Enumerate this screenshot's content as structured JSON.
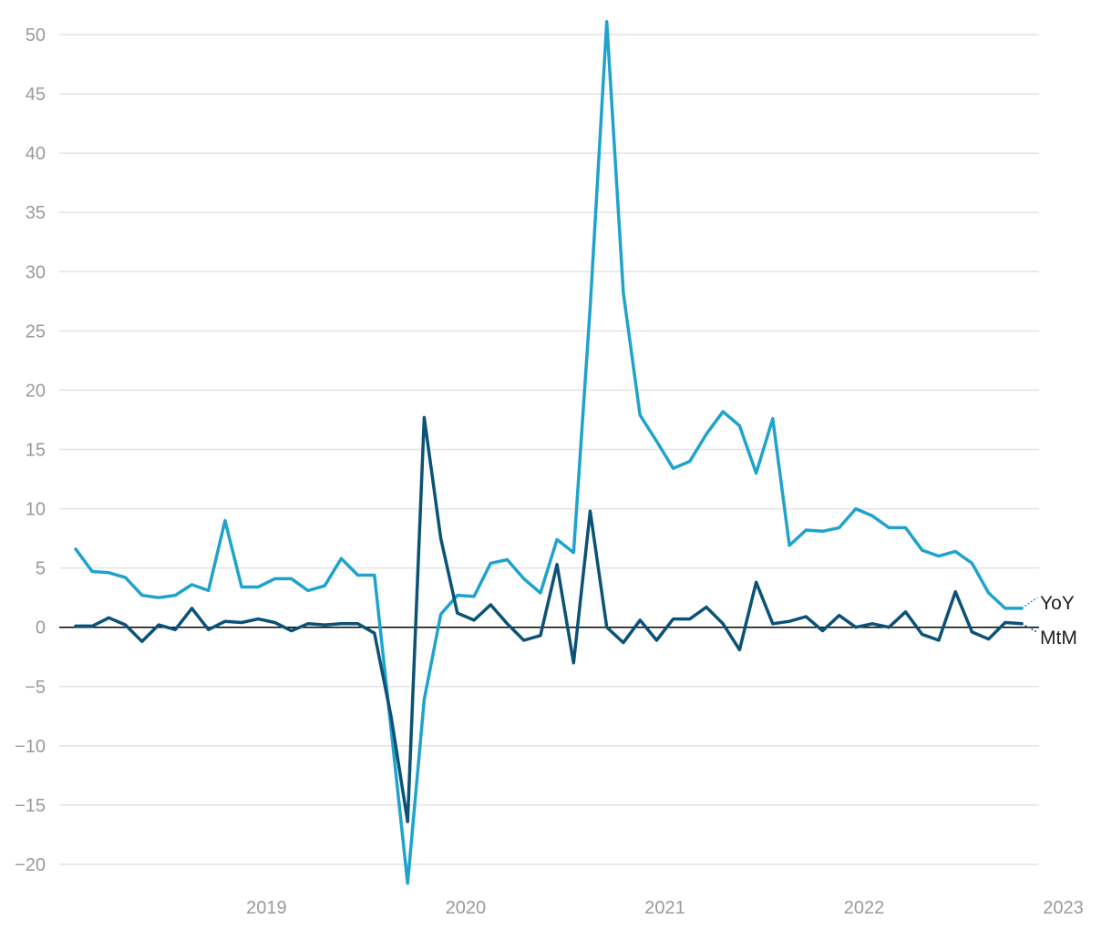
{
  "chart_data": {
    "type": "line",
    "title": "",
    "xlabel": "",
    "ylabel": "",
    "x_ticks": [
      "2019",
      "2020",
      "2021",
      "2022",
      "2023"
    ],
    "y_ticks": [
      50,
      45,
      40,
      35,
      30,
      25,
      20,
      15,
      10,
      5,
      0,
      -5,
      -10,
      -15,
      -20
    ],
    "ylim": [
      -22,
      52
    ],
    "xlim": [
      "2018-08",
      "2023-06"
    ],
    "grid": "horizontal",
    "legend": "inline-right",
    "x": [
      "2018-08",
      "2018-09",
      "2018-10",
      "2018-11",
      "2018-12",
      "2019-01",
      "2019-02",
      "2019-03",
      "2019-04",
      "2019-05",
      "2019-06",
      "2019-07",
      "2019-08",
      "2019-09",
      "2019-10",
      "2019-11",
      "2019-12",
      "2020-01",
      "2020-02",
      "2020-03",
      "2020-04",
      "2020-05",
      "2020-06",
      "2020-07",
      "2020-08",
      "2020-09",
      "2020-10",
      "2020-11",
      "2020-12",
      "2021-01",
      "2021-02",
      "2021-03",
      "2021-04",
      "2021-05",
      "2021-06",
      "2021-07",
      "2021-08",
      "2021-09",
      "2021-10",
      "2021-11",
      "2021-12",
      "2022-01",
      "2022-02",
      "2022-03",
      "2022-04",
      "2022-05",
      "2022-06",
      "2022-07",
      "2022-08",
      "2022-09",
      "2022-10",
      "2022-11",
      "2022-12",
      "2023-01",
      "2023-02",
      "2023-03",
      "2023-04",
      "2023-05"
    ],
    "series": [
      {
        "name": "YoY",
        "color": "#1fa3cd",
        "values": [
          6.6,
          4.7,
          4.6,
          4.2,
          2.7,
          2.5,
          2.7,
          3.6,
          3.1,
          9.0,
          3.4,
          3.4,
          4.1,
          4.1,
          3.1,
          3.5,
          5.8,
          4.4,
          4.4,
          -8.5,
          -21.6,
          -6.1,
          1.1,
          2.7,
          2.6,
          5.4,
          5.7,
          4.1,
          2.9,
          7.4,
          6.3,
          27.0,
          51.1,
          28.2,
          17.9,
          15.7,
          13.4,
          14.0,
          16.3,
          18.2,
          17.0,
          13.0,
          17.6,
          6.9,
          8.2,
          8.1,
          8.4,
          10.0,
          9.4,
          8.4,
          8.4,
          6.5,
          6.0,
          6.4,
          5.4,
          2.9,
          1.6,
          1.6
        ]
      },
      {
        "name": "MtM",
        "color": "#0b5276",
        "values": [
          0.1,
          0.1,
          0.8,
          0.2,
          -1.2,
          0.2,
          -0.2,
          1.6,
          -0.2,
          0.5,
          0.4,
          0.7,
          0.4,
          -0.3,
          0.3,
          0.2,
          0.3,
          0.3,
          -0.5,
          -7.5,
          -16.4,
          17.7,
          7.5,
          1.2,
          0.6,
          1.9,
          0.3,
          -1.1,
          -0.7,
          5.3,
          -3.0,
          9.8,
          0.0,
          -1.3,
          0.6,
          -1.1,
          0.7,
          0.7,
          1.7,
          0.3,
          -1.9,
          3.8,
          0.3,
          0.5,
          0.9,
          -0.3,
          1.0,
          0.0,
          0.3,
          0.0,
          1.3,
          -0.6,
          -1.1,
          3.0,
          -0.4,
          -1.0,
          0.4,
          0.3
        ]
      }
    ]
  }
}
